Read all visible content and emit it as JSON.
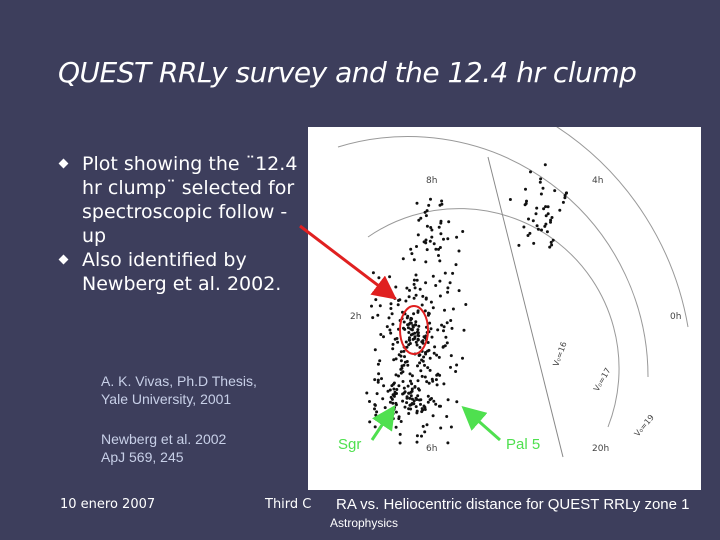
{
  "slide": {
    "title": "QUEST RRLy survey and the 12.4 hr clump",
    "bullets": [
      "Plot showing the ¨12.4 hr clump¨ selected for spectroscopic follow -up",
      "Also identified by Newberg et al. 2002."
    ],
    "citation1": [
      "A. K. Vivas, Ph.D Thesis,",
      "Yale University, 2001"
    ],
    "citation2": [
      "Newberg et al. 2002",
      "ApJ 569, 245"
    ],
    "footer_date": "10 enero 2007",
    "footer_mid": "Third C",
    "footer_extra": "Astrophysics",
    "caption": "RA vs. Heliocentric distance for QUEST RRLy zone 1",
    "label_sgr": "Sgr",
    "label_pal5": "Pal 5"
  },
  "plot": {
    "hour_labels": [
      "8h",
      "4h",
      "2h",
      "0h",
      "6h",
      "20h"
    ],
    "distance_labels": [
      "V₀=16",
      "V₀=17",
      "V₀=19"
    ]
  },
  "colors": {
    "background": "#3d3e5c",
    "arrow_red": "#e02020",
    "arrow_green": "#4fe04f",
    "text": "#ffffff"
  }
}
